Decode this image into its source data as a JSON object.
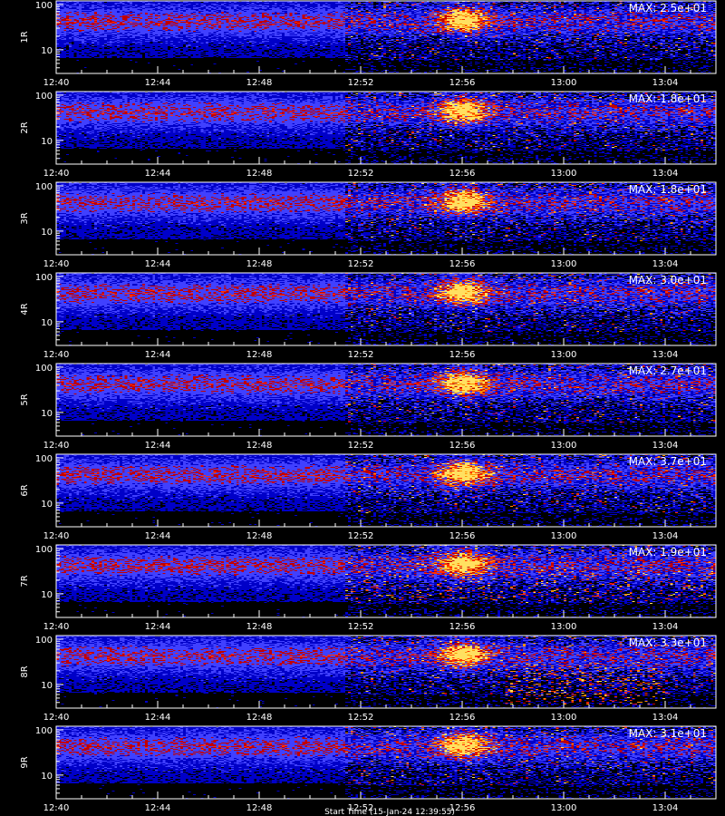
{
  "chart_data": {
    "type": "heatmap",
    "max_label_prefix": "MAX: ",
    "x_tick_labels": [
      "12:40",
      "12:44",
      "12:48",
      "12:52",
      "12:56",
      "13:00",
      "13:04"
    ],
    "x_tick_minutes": [
      0,
      4,
      8,
      12,
      16,
      20,
      24
    ],
    "x_range_minutes": [
      0,
      26
    ],
    "y_scale": "log",
    "y_range": [
      3,
      120
    ],
    "y_tick_labels": [
      "10",
      "100"
    ],
    "y_tick_values": [
      10,
      100
    ],
    "panels": [
      {
        "label": "1R",
        "max": "2.5e+01"
      },
      {
        "label": "2R",
        "max": "1.8e+01"
      },
      {
        "label": "3R",
        "max": "1.8e+01"
      },
      {
        "label": "4R",
        "max": "3.0e+01"
      },
      {
        "label": "5R",
        "max": "2.7e+01"
      },
      {
        "label": "6R",
        "max": "3.7e+01"
      },
      {
        "label": "7R",
        "max": "1.9e+01"
      },
      {
        "label": "8R",
        "max": "3.3e+01"
      },
      {
        "label": "9R",
        "max": "3.1e+01"
      }
    ],
    "colormap": [
      "#000000",
      "#0000c8",
      "#4040ff",
      "#c00000",
      "#ff3000",
      "#ff9000",
      "#ffe060"
    ],
    "footer": "Start Time (15-Jan-24 12:39:55)"
  }
}
